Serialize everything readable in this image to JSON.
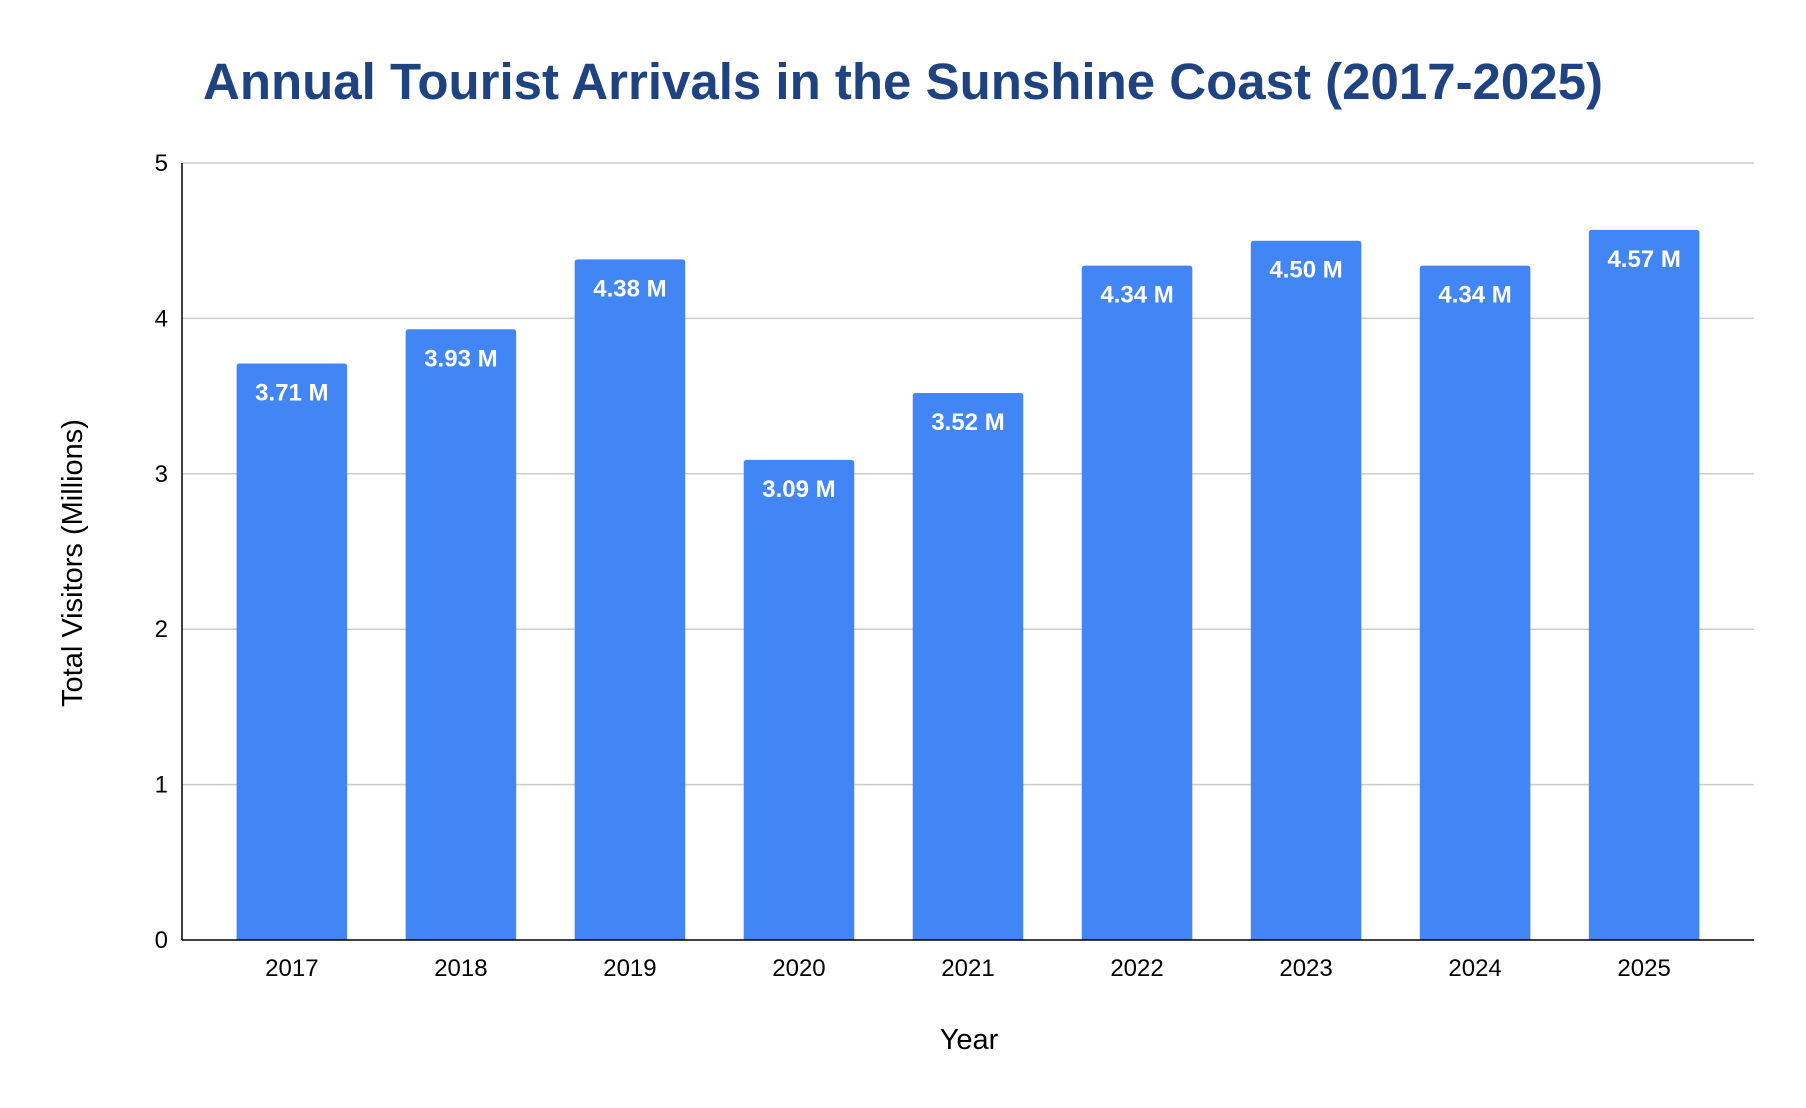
{
  "chart_data": {
    "type": "bar",
    "title": "Annual Tourist Arrivals in the Sunshine Coast (2017-2025)",
    "xlabel": "Year",
    "ylabel": "Total Visitors (Millions)",
    "categories": [
      "2017",
      "2018",
      "2019",
      "2020",
      "2021",
      "2022",
      "2023",
      "2024",
      "2025"
    ],
    "values": [
      3.71,
      3.93,
      4.38,
      3.09,
      3.52,
      4.34,
      4.5,
      4.34,
      4.57
    ],
    "data_labels": [
      "3.71 M",
      "3.93 M",
      "4.38 M",
      "3.09 M",
      "3.52 M",
      "4.34 M",
      "4.50 M",
      "4.34 M",
      "4.57 M"
    ],
    "ylim": [
      0,
      5
    ],
    "yticks": [
      0,
      1,
      2,
      3,
      4,
      5
    ],
    "grid": true,
    "legend": "none",
    "colors": {
      "bar": "#4285f4",
      "title": "#1f4380",
      "grid": "#cccccc",
      "axis": "#000000",
      "bar_label": "#ffffff"
    }
  }
}
